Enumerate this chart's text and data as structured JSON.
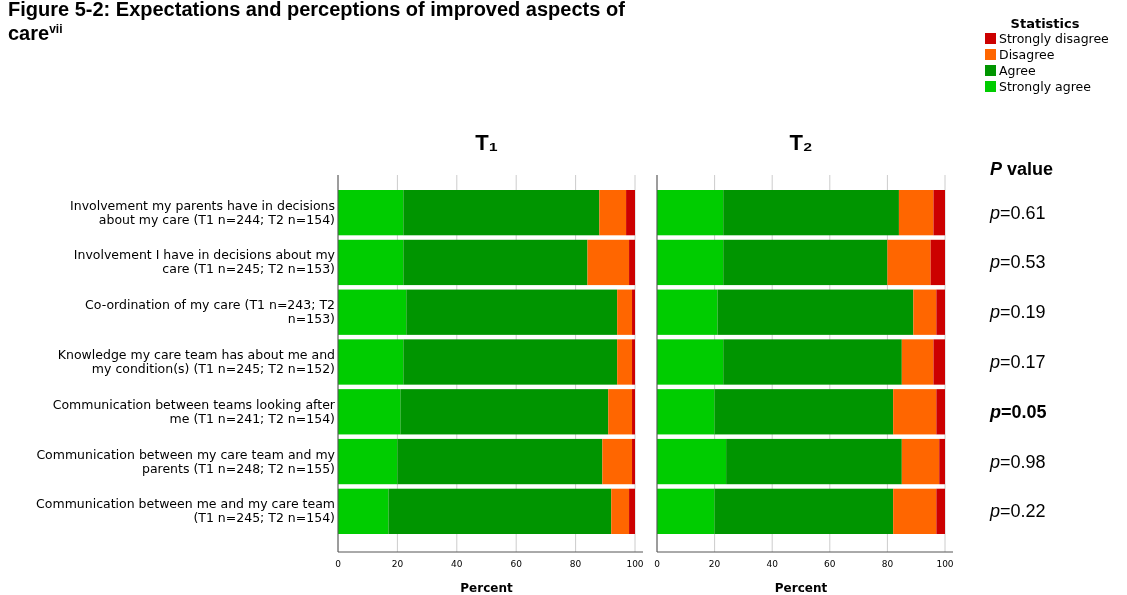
{
  "chart_data": [
    {
      "type": "bar",
      "orientation": "horizontal",
      "stacked": true,
      "title": "Figure 5-2: Expectations and perceptions of improved aspects of care$^{vii}$",
      "subtitle": "T₁",
      "xlabel": "Percent",
      "categories": [
        "Involvement my parents have in decisions about my care (T1 n=244; T2 n=154)",
        "Involvement I have in decisions about my care (T1 n=245; T2 n=153)",
        "Co-ordination of my care (T1 n=243; T2 n=153)",
        "Knowledge my care team has about me and my condition(s) (T1 n=245; T2 n=152)",
        "Communication between teams looking after me (T1 n=241; T2 n=154)",
        "Communication between my care team and my parents (T1 n=248; T2 n=155)",
        "Communication between me and my care team (T1 n=245; T2 n=154)"
      ],
      "series": [
        {
          "color": "#00cc00",
          "values": [
            22,
            22,
            23,
            22,
            21,
            20,
            17
          ]
        },
        {
          "color": "#009500",
          "values": [
            66,
            62,
            71,
            72,
            70,
            69,
            75
          ]
        },
        {
          "color": "#ff6600",
          "values": [
            9,
            14,
            5,
            5,
            8,
            10,
            6
          ]
        },
        {
          "color": "#cc0000",
          "values": [
            3,
            2,
            1,
            1,
            1,
            1,
            2
          ]
        }
      ],
      "xlim": [
        0,
        100
      ],
      "xticks": [
        0,
        20,
        40,
        60,
        80,
        100
      ],
      "grid": "x",
      "legend": false
    },
    {
      "type": "bar",
      "orientation": "horizontal",
      "stacked": true,
      "subtitle": "T₂",
      "xlabel": "Percent",
      "legend_title": "Statistics",
      "categories": [
        null,
        null,
        null,
        null,
        null,
        null,
        null
      ],
      "series": [
        {
          "name": "Strongly agree",
          "color": "#00cc00",
          "values": [
            23,
            23,
            21,
            23,
            20,
            24,
            20
          ]
        },
        {
          "name": "Agree",
          "color": "#009500",
          "values": [
            61,
            57,
            68,
            62,
            62,
            61,
            62
          ]
        },
        {
          "name": "Disagree",
          "color": "#ff6600",
          "values": [
            12,
            15,
            8,
            11,
            15,
            13,
            15
          ]
        },
        {
          "name": "Strongly disagree",
          "color": "#cc0000",
          "values": [
            4,
            5,
            3,
            4,
            3,
            2,
            3
          ]
        }
      ],
      "xlim": [
        0,
        100
      ],
      "xticks": [
        0,
        20,
        40,
        60,
        80,
        100
      ],
      "grid": "x",
      "legend": "top right",
      "tick_labels": "x",
      "annotations": [
        "P value",
        "p=0.61",
        "p=0.53",
        "p=0.19",
        "p=0.17",
        "p=0.05",
        "p=0.98",
        "p=0.22"
      ]
    }
  ]
}
